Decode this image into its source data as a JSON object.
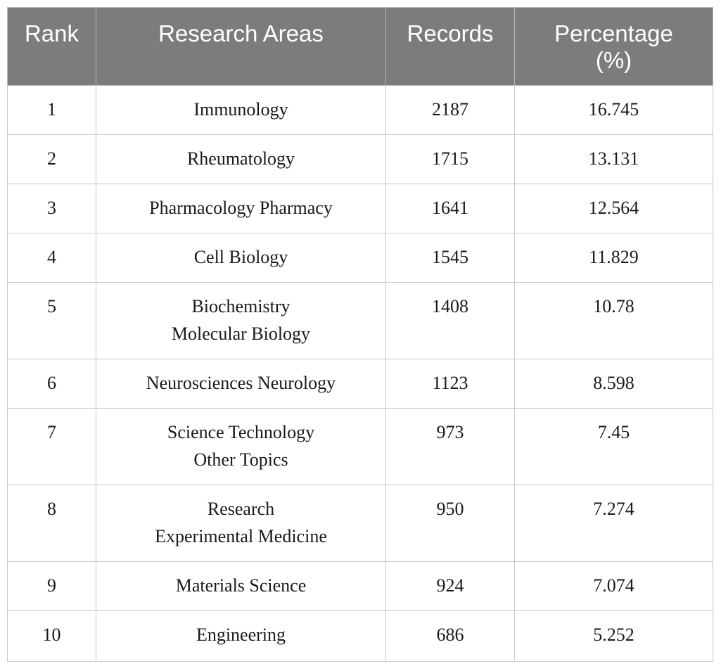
{
  "table": {
    "headers": {
      "rank": "Rank",
      "area": "Research Areas",
      "records": "Records",
      "percentage_line1": "Percentage",
      "percentage_line2": "(%)"
    },
    "rows": [
      {
        "rank": "1",
        "area": [
          "Immunology"
        ],
        "records": "2187",
        "percentage": "16.745"
      },
      {
        "rank": "2",
        "area": [
          "Rheumatology"
        ],
        "records": "1715",
        "percentage": "13.131"
      },
      {
        "rank": "3",
        "area": [
          "Pharmacology Pharmacy"
        ],
        "records": "1641",
        "percentage": "12.564"
      },
      {
        "rank": "4",
        "area": [
          "Cell Biology"
        ],
        "records": "1545",
        "percentage": "11.829"
      },
      {
        "rank": "5",
        "area": [
          "Biochemistry",
          "Molecular Biology"
        ],
        "records": "1408",
        "percentage": "10.78"
      },
      {
        "rank": "6",
        "area": [
          "Neurosciences Neurology"
        ],
        "records": "1123",
        "percentage": "8.598"
      },
      {
        "rank": "7",
        "area": [
          "Science Technology",
          "Other Topics"
        ],
        "records": "973",
        "percentage": "7.45"
      },
      {
        "rank": "8",
        "area": [
          "Research",
          "Experimental Medicine"
        ],
        "records": "950",
        "percentage": "7.274"
      },
      {
        "rank": "9",
        "area": [
          "Materials Science"
        ],
        "records": "924",
        "percentage": "7.074"
      },
      {
        "rank": "10",
        "area": [
          "Engineering"
        ],
        "records": "686",
        "percentage": "5.252"
      }
    ]
  }
}
